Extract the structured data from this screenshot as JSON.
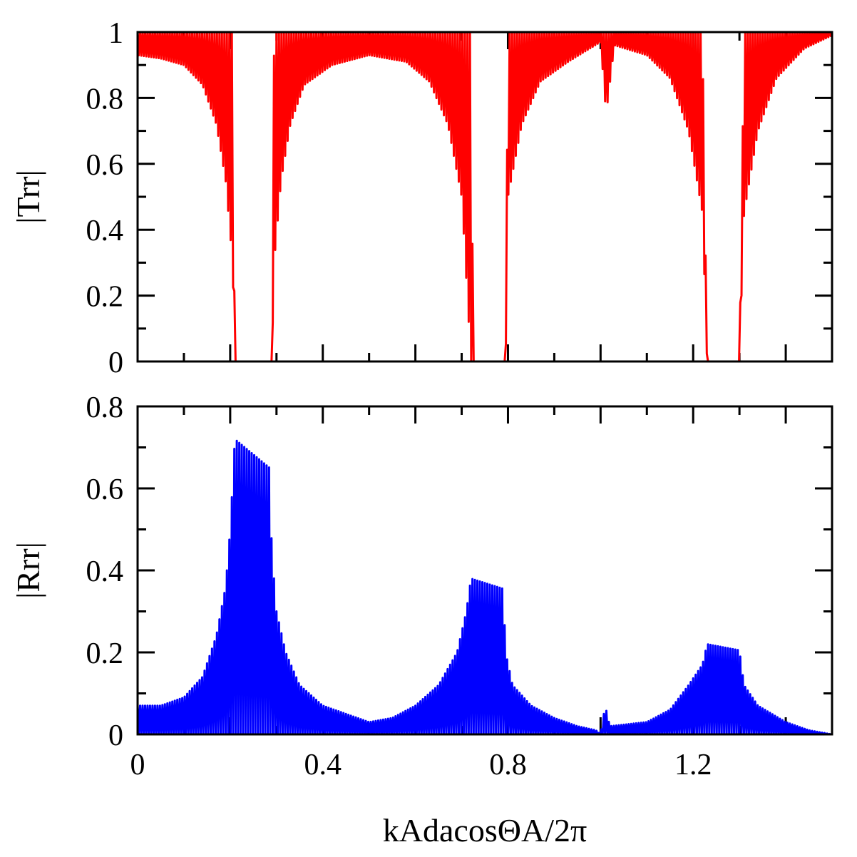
{
  "chart_data": [
    {
      "type": "line",
      "panel": "top",
      "ylabel": "|Trr|",
      "xlim": [
        0,
        1.5
      ],
      "ylim": [
        0,
        1
      ],
      "y_ticks": [
        "0",
        "0.2",
        "0.4",
        "0.6",
        "0.8",
        "1"
      ],
      "color": "#ff0000",
      "series": [
        {
          "envelope_upper": [
            [
              0,
              1
            ],
            [
              0.1,
              1
            ],
            [
              0.18,
              1
            ],
            [
              0.205,
              1
            ],
            [
              0.21,
              0
            ],
            [
              0.29,
              0
            ],
            [
              0.295,
              1
            ],
            [
              0.5,
              1
            ],
            [
              0.72,
              1
            ],
            [
              0.725,
              0
            ],
            [
              0.795,
              0
            ],
            [
              0.8,
              1
            ],
            [
              1.0,
              1
            ],
            [
              1.01,
              1
            ],
            [
              1.22,
              1
            ],
            [
              1.23,
              0
            ],
            [
              1.3,
              0
            ],
            [
              1.31,
              1
            ],
            [
              1.5,
              1
            ]
          ],
          "envelope_lower": [
            [
              0,
              0.93
            ],
            [
              0.05,
              0.92
            ],
            [
              0.1,
              0.9
            ],
            [
              0.14,
              0.84
            ],
            [
              0.17,
              0.72
            ],
            [
              0.19,
              0.55
            ],
            [
              0.205,
              0.3
            ],
            [
              0.21,
              0
            ],
            [
              0.29,
              0
            ],
            [
              0.295,
              0.3
            ],
            [
              0.31,
              0.55
            ],
            [
              0.33,
              0.72
            ],
            [
              0.36,
              0.84
            ],
            [
              0.42,
              0.9
            ],
            [
              0.5,
              0.93
            ],
            [
              0.58,
              0.91
            ],
            [
              0.63,
              0.85
            ],
            [
              0.67,
              0.72
            ],
            [
              0.7,
              0.5
            ],
            [
              0.72,
              0
            ],
            [
              0.795,
              0
            ],
            [
              0.8,
              0.5
            ],
            [
              0.83,
              0.72
            ],
            [
              0.87,
              0.85
            ],
            [
              0.93,
              0.91
            ],
            [
              1.0,
              0.97
            ],
            [
              1.012,
              0.75
            ],
            [
              1.03,
              0.96
            ],
            [
              1.1,
              0.93
            ],
            [
              1.15,
              0.86
            ],
            [
              1.19,
              0.7
            ],
            [
              1.22,
              0.45
            ],
            [
              1.23,
              0
            ],
            [
              1.3,
              0
            ],
            [
              1.31,
              0.45
            ],
            [
              1.34,
              0.7
            ],
            [
              1.38,
              0.86
            ],
            [
              1.44,
              0.95
            ],
            [
              1.5,
              0.99
            ]
          ]
        }
      ]
    },
    {
      "type": "line",
      "panel": "bottom",
      "xlabel": "kAdacosΘA/2π",
      "ylabel": "|Rrr|",
      "xlim": [
        0,
        1.5
      ],
      "ylim": [
        0,
        0.8
      ],
      "x_ticks": [
        "0",
        "0.4",
        "0.8",
        "1.2"
      ],
      "y_ticks": [
        "0",
        "0.2",
        "0.4",
        "0.6",
        "0.8"
      ],
      "color": "#0000ff",
      "series": [
        {
          "envelope_upper": [
            [
              0,
              0.07
            ],
            [
              0.05,
              0.07
            ],
            [
              0.1,
              0.09
            ],
            [
              0.14,
              0.14
            ],
            [
              0.17,
              0.24
            ],
            [
              0.19,
              0.36
            ],
            [
              0.2,
              0.5
            ],
            [
              0.21,
              0.72
            ],
            [
              0.285,
              0.65
            ],
            [
              0.29,
              0.45
            ],
            [
              0.3,
              0.3
            ],
            [
              0.32,
              0.2
            ],
            [
              0.35,
              0.12
            ],
            [
              0.4,
              0.07
            ],
            [
              0.45,
              0.05
            ],
            [
              0.5,
              0.03
            ],
            [
              0.55,
              0.04
            ],
            [
              0.6,
              0.07
            ],
            [
              0.65,
              0.12
            ],
            [
              0.69,
              0.2
            ],
            [
              0.71,
              0.3
            ],
            [
              0.72,
              0.38
            ],
            [
              0.79,
              0.355
            ],
            [
              0.795,
              0.2
            ],
            [
              0.81,
              0.12
            ],
            [
              0.85,
              0.07
            ],
            [
              0.9,
              0.04
            ],
            [
              0.95,
              0.02
            ],
            [
              0.99,
              0.01
            ],
            [
              1.0,
              0.0
            ],
            [
              1.01,
              0.07
            ],
            [
              1.02,
              0.02
            ],
            [
              1.1,
              0.03
            ],
            [
              1.15,
              0.06
            ],
            [
              1.19,
              0.12
            ],
            [
              1.22,
              0.17
            ],
            [
              1.23,
              0.22
            ],
            [
              1.3,
              0.205
            ],
            [
              1.31,
              0.12
            ],
            [
              1.34,
              0.07
            ],
            [
              1.4,
              0.03
            ],
            [
              1.45,
              0.01
            ],
            [
              1.5,
              0.0
            ]
          ],
          "envelope_lower": [
            [
              0,
              0
            ],
            [
              1.5,
              0
            ]
          ]
        }
      ]
    }
  ]
}
